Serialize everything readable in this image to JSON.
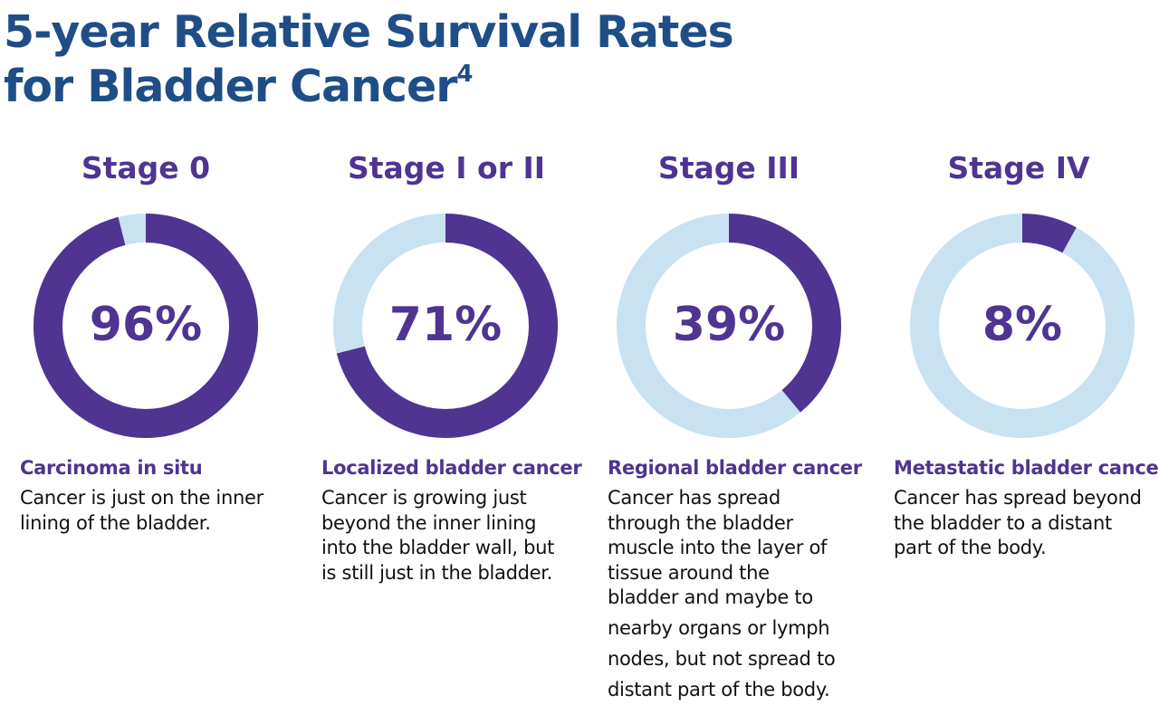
{
  "title": {
    "line1": "5-year Relative Survival Rates",
    "line2": "for Bladder Cancer",
    "sup": "4"
  },
  "colors": {
    "primary": "#4f3491",
    "track": "#c9e2f1",
    "title": "#1f4e87"
  },
  "chart_data": {
    "type": "pie",
    "title": "5-year Relative Survival Rates for Bladder Cancer",
    "unit": "%",
    "stages": [
      {
        "name": "Stage 0",
        "value": 96,
        "label": "96%",
        "subtitle": "Carcinoma in situ",
        "desc": [
          "Cancer is just on the inner",
          "lining of the bladder."
        ]
      },
      {
        "name": "Stage I or II",
        "value": 71,
        "label": "71%",
        "subtitle": "Localized bladder cancer",
        "desc": [
          "Cancer is growing just",
          "beyond the inner lining",
          "into the bladder wall, but",
          "is still just in the bladder."
        ]
      },
      {
        "name": "Stage III",
        "value": 39,
        "label": "39%",
        "subtitle": "Regional bladder cancer",
        "desc": [
          "Cancer has spread",
          "through the bladder",
          "muscle into the layer of",
          "tissue around the",
          "bladder and maybe to",
          "nearby organs or lymph",
          "nodes, but not spread to",
          "distant part of the body."
        ]
      },
      {
        "name": "Stage IV",
        "value": 8,
        "label": "8%",
        "subtitle": "Metastatic bladder cancer",
        "desc": [
          "Cancer has spread beyond",
          "the bladder to a distant",
          "part of the body."
        ]
      }
    ]
  }
}
